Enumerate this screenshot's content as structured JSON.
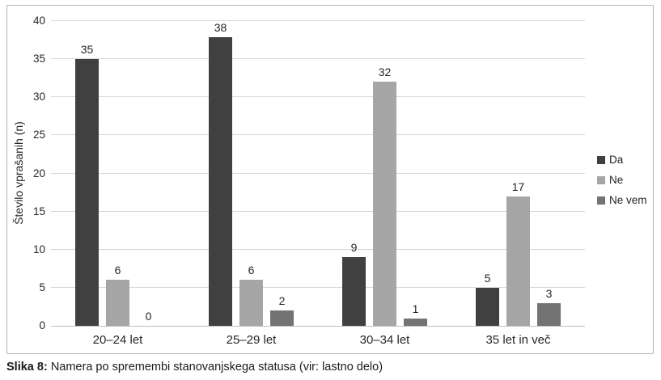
{
  "figure": {
    "caption_label": "Slika 8:",
    "caption_text": "Namera po spremembi stanovanjskega statusa (vir: lastno delo)"
  },
  "chart_data": {
    "type": "bar",
    "title": "",
    "categories": [
      "20–24 let",
      "25–29 let",
      "30–34 let",
      "35 let in več"
    ],
    "series": [
      {
        "name": "Da",
        "color": "#404040",
        "values": [
          35,
          38,
          9,
          5
        ]
      },
      {
        "name": "Ne",
        "color": "#a6a6a6",
        "values": [
          6,
          6,
          32,
          17
        ]
      },
      {
        "name": "Ne vem",
        "color": "#737373",
        "values": [
          0,
          2,
          1,
          3
        ]
      }
    ],
    "xlabel": "",
    "ylabel": "Število vprašanih (n)",
    "ylim": [
      0,
      40
    ],
    "ytick_step": 5,
    "grid": "horizontal",
    "legend_position": "right",
    "bar_value_labels": true
  },
  "colors": {
    "gridline": "#d9d9d9",
    "axis_line": "#bfbfbf",
    "frame_border": "#b3b3b3",
    "text": "#262626"
  }
}
